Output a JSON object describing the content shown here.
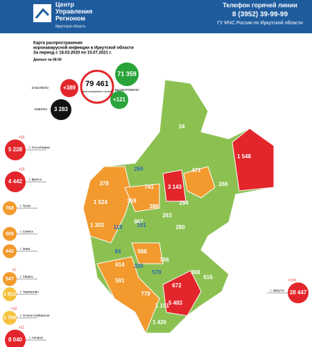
{
  "header": {
    "logo_line1": "Центр",
    "logo_line2": "Управления",
    "logo_line3": "Регионом",
    "logo_sub": "Иркутская область",
    "hotline_label": "Телефон горячей линии",
    "phone": "8 (3952) 39-99-99",
    "org": "ГУ МЧС России по Иркутской области"
  },
  "info": {
    "title1": "Карта распространения",
    "title2": "коронавирусной инфекции в Иркутской области",
    "period": "За период с 18.03.2020 по 15.07.2021 г.",
    "as_of": "Данные на 08:00"
  },
  "summary": {
    "infected_label": "ЗАБОЛЕЛО",
    "new_infected": "+389",
    "total": "79 461",
    "total_label": "зарегистрировано случаев",
    "recovered": "71 359",
    "recovered_label": "ВЫЗДОРОВЕЛО",
    "new_recovered": "+121",
    "died": "3 283",
    "died_label": "УМЕРЛО"
  },
  "cities": [
    {
      "value": "5 228",
      "delta": "+20",
      "name": "г. Усть-Илимск",
      "color": "#e3262b"
    },
    {
      "value": "4 442",
      "delta": "+23",
      "name": "г. Братск",
      "color": "#e3262b"
    },
    {
      "value": "768",
      "name": "г. Тулун",
      "color": "#f29a2e"
    },
    {
      "value": "609",
      "name": "г. Саянск",
      "color": "#f29a2e"
    },
    {
      "value": "442",
      "name": "г. Зима",
      "color": "#f29a2e"
    },
    {
      "value": "547",
      "delta": "+2",
      "name": "г. Свирск",
      "color": "#f29a2e"
    },
    {
      "value": "1 613",
      "name": "г. Черемхово",
      "color": "#f6c23e"
    },
    {
      "value": "1 759",
      "delta": "+10",
      "name": "г. Усолье-Сибирское",
      "color": "#f6c23e"
    },
    {
      "value": "8 040",
      "delta": "+21",
      "name": "г. Ангарск",
      "color": "#e3262b"
    },
    {
      "value": "28 447",
      "delta": "+109",
      "name": "г. Иркутск",
      "color": "#e3262b"
    }
  ],
  "regions": [
    {
      "value": "34",
      "color": "#fff"
    },
    {
      "value": "1 548",
      "color": "#fff"
    },
    {
      "value": "266",
      "color": "#2b6cb0"
    },
    {
      "value": "471",
      "color": "#fff"
    },
    {
      "value": "266",
      "color": "#fff"
    },
    {
      "value": "741",
      "color": "#fff"
    },
    {
      "value": "3 143",
      "color": "#fff"
    },
    {
      "value": "378",
      "color": "#fff"
    },
    {
      "value": "1 524",
      "color": "#fff"
    },
    {
      "value": "359",
      "color": "#fff"
    },
    {
      "value": "388",
      "color": "#fff"
    },
    {
      "value": "294",
      "color": "#fff"
    },
    {
      "value": "967",
      "color": "#fff"
    },
    {
      "value": "263",
      "color": "#fff"
    },
    {
      "value": "1 303",
      "color": "#fff"
    },
    {
      "value": "119",
      "color": "#2b6cb0"
    },
    {
      "value": "191",
      "color": "#2b6cb0"
    },
    {
      "value": "280",
      "color": "#fff"
    },
    {
      "value": "84",
      "color": "#2b6cb0"
    },
    {
      "value": "588",
      "color": "#fff"
    },
    {
      "value": "614",
      "color": "#fff"
    },
    {
      "value": "335",
      "color": "#2b6cb0"
    },
    {
      "value": "706",
      "color": "#fff"
    },
    {
      "value": "368",
      "color": "#fff"
    },
    {
      "value": "591",
      "color": "#fff"
    },
    {
      "value": "579",
      "color": "#2b6cb0"
    },
    {
      "value": "616",
      "color": "#fff"
    },
    {
      "value": "778",
      "color": "#fff"
    },
    {
      "value": "672",
      "color": "#fff"
    },
    {
      "value": "5 483",
      "color": "#fff"
    },
    {
      "value": "1 191",
      "color": "#fff"
    },
    {
      "value": "1 426",
      "color": "#fff"
    }
  ]
}
